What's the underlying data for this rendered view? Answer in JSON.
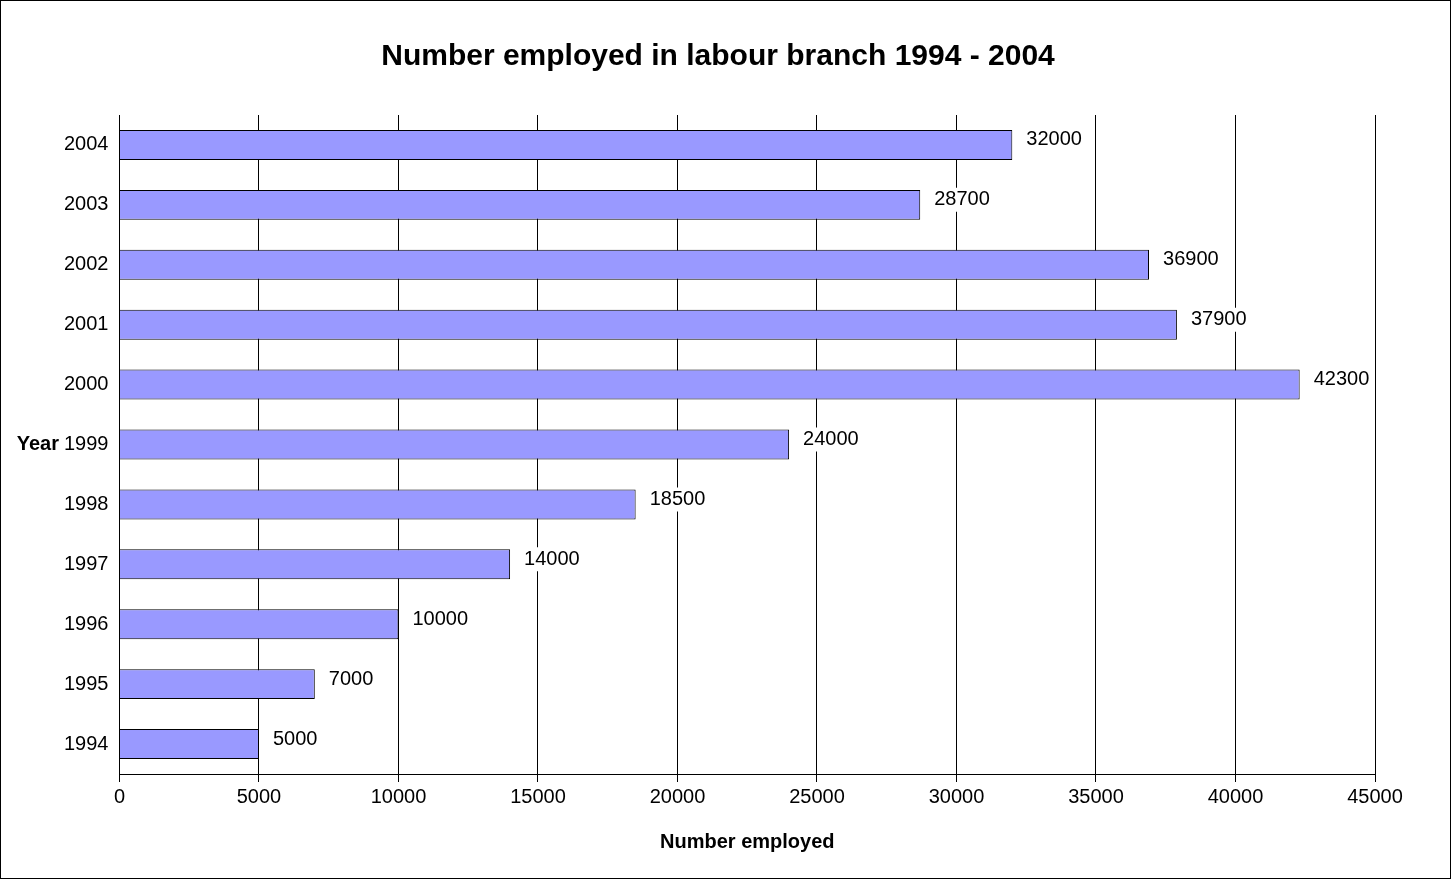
{
  "chart_data": {
    "type": "bar",
    "orientation": "horizontal",
    "title": "Number employed in labour branch 1994 - 2004",
    "xlabel": "Number employed",
    "ylabel": "Year",
    "categories": [
      "2004",
      "2003",
      "2002",
      "2001",
      "2000",
      "1999",
      "1998",
      "1997",
      "1996",
      "1995",
      "1994"
    ],
    "values": [
      32000,
      28700,
      36900,
      37900,
      42300,
      24000,
      18500,
      14000,
      10000,
      7000,
      5000
    ],
    "color": "#9999ff",
    "xlim": [
      0,
      45000
    ],
    "xticks": [
      0,
      5000,
      10000,
      15000,
      20000,
      25000,
      30000,
      35000,
      40000,
      45000
    ],
    "grid": "x",
    "data_labels": true,
    "legend": false
  }
}
